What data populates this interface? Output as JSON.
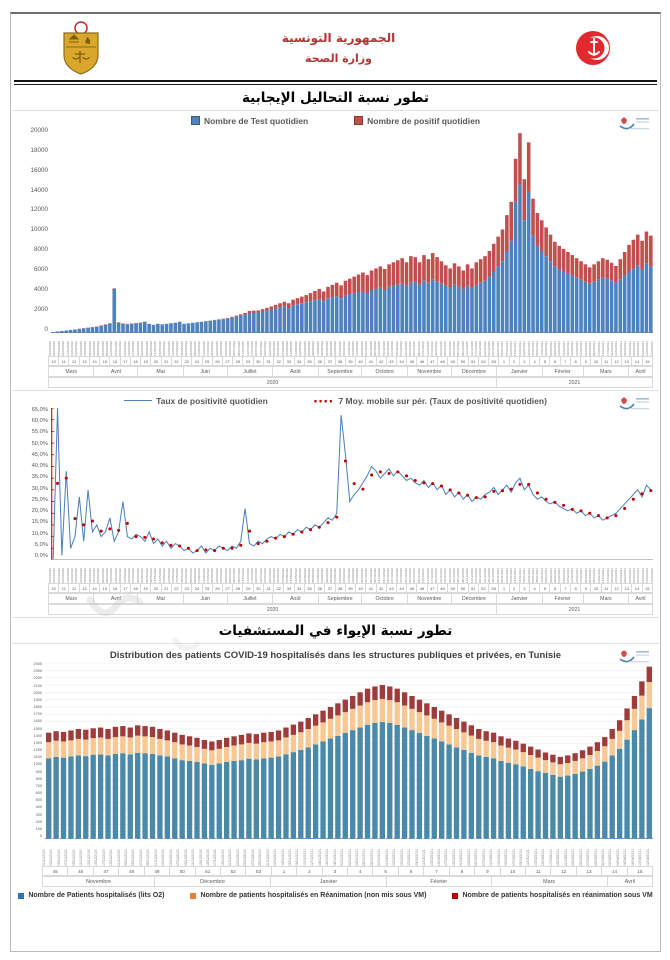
{
  "header": {
    "republic": "الجمهورية التونسية",
    "ministry": "وزارة الصحة"
  },
  "section1_title": "تطور نسبة التحاليل الإيجابية",
  "section2_title": "تطور نسبة الإيواء في المستشفيات",
  "colors": {
    "test_blue": "#4f81bd",
    "positive_red": "#c0504d",
    "ma_red": "#c00000",
    "hosp_blue": "#4a89a8",
    "hosp_tan": "#f7c893",
    "hosp_darkred": "#9e3b3b",
    "legend3_blue": "#2e75b6",
    "legend3_orange": "#ed7d31",
    "legend3_red": "#c00000"
  },
  "chart_data": [
    {
      "type": "bar",
      "stacked": true,
      "title": "",
      "legend": [
        "Nombre de Test quotidien",
        "Nombre de positif quotidien"
      ],
      "ylim": [
        0,
        20000
      ],
      "y_ticks": [
        "20000",
        "18000",
        "16000",
        "14000",
        "12000",
        "10000",
        "8000",
        "6000",
        "4000",
        "2000",
        "0"
      ],
      "x_start": "2020-03-01",
      "x_step_days": 3,
      "weeks": [
        "10",
        "11",
        "12",
        "13",
        "14",
        "15",
        "16",
        "17",
        "18",
        "19",
        "20",
        "21",
        "22",
        "23",
        "24",
        "25",
        "26",
        "27",
        "28",
        "29",
        "30",
        "31",
        "32",
        "33",
        "34",
        "35",
        "36",
        "37",
        "38",
        "39",
        "40",
        "41",
        "42",
        "43",
        "44",
        "45",
        "46",
        "47",
        "48",
        "49",
        "50",
        "51",
        "52",
        "53",
        "1",
        "2",
        "3",
        "4",
        "5",
        "6",
        "7",
        "8",
        "9",
        "10",
        "11",
        "12",
        "13",
        "14",
        "15"
      ],
      "months": [
        {
          "label": "Mars",
          "days": 31
        },
        {
          "label": "Avril",
          "days": 30
        },
        {
          "label": "Mai",
          "days": 31
        },
        {
          "label": "Juin",
          "days": 30
        },
        {
          "label": "Juillet",
          "days": 31
        },
        {
          "label": "Août",
          "days": 31
        },
        {
          "label": "Septembre",
          "days": 30
        },
        {
          "label": "Octobre",
          "days": 31
        },
        {
          "label": "Novembre",
          "days": 30
        },
        {
          "label": "Décembre",
          "days": 31
        },
        {
          "label": "Janvier",
          "days": 31
        },
        {
          "label": "Février",
          "days": 28
        },
        {
          "label": "Mars",
          "days": 31
        },
        {
          "label": "Avril",
          "days": 16
        }
      ],
      "years": [
        {
          "label": "2020",
          "days": 306
        },
        {
          "label": "2021",
          "days": 106
        }
      ],
      "series": [
        {
          "name": "Nombre de Test quotidien",
          "values": [
            100,
            150,
            200,
            250,
            300,
            350,
            400,
            450,
            500,
            550,
            600,
            700,
            800,
            900,
            4300,
            1000,
            900,
            850,
            900,
            950,
            1000,
            1100,
            900,
            800,
            900,
            850,
            900,
            950,
            1000,
            1100,
            900,
            950,
            1000,
            1050,
            1100,
            1150,
            1200,
            1250,
            1300,
            1350,
            1400,
            1500,
            1600,
            1700,
            1800,
            1900,
            2000,
            2000,
            2100,
            2200,
            2300,
            2400,
            2500,
            2600,
            2400,
            2700,
            2800,
            2900,
            3000,
            3100,
            3200,
            3300,
            3100,
            3400,
            3500,
            3600,
            3400,
            3700,
            3800,
            3900,
            4000,
            4100,
            3900,
            4200,
            4300,
            4400,
            4200,
            4500,
            4600,
            4700,
            4800,
            4600,
            4900,
            5000,
            4700,
            5100,
            4900,
            5200,
            5000,
            4800,
            4600,
            4400,
            4700,
            4500,
            4300,
            4600,
            4400,
            4700,
            4900,
            5100,
            5500,
            6000,
            6500,
            7000,
            8000,
            9000,
            12800,
            14500,
            11000,
            13800,
            9500,
            8500,
            8000,
            7500,
            7000,
            6500,
            6200,
            6000,
            5800,
            5600,
            5400,
            5200,
            5000,
            4800,
            5000,
            5200,
            5400,
            5300,
            5100,
            4900,
            5200,
            5600,
            6000,
            6300,
            6600,
            6200,
            6800,
            6500
          ]
        },
        {
          "name": "Nombre de positif quotidien",
          "values": [
            5,
            8,
            10,
            12,
            15,
            18,
            20,
            25,
            30,
            35,
            40,
            45,
            50,
            55,
            60,
            50,
            45,
            40,
            35,
            30,
            25,
            20,
            18,
            15,
            12,
            10,
            10,
            8,
            8,
            10,
            5,
            6,
            8,
            10,
            12,
            15,
            20,
            30,
            40,
            50,
            60,
            80,
            100,
            120,
            150,
            250,
            180,
            200,
            220,
            250,
            300,
            350,
            400,
            450,
            500,
            550,
            600,
            650,
            700,
            800,
            900,
            1000,
            950,
            1100,
            1200,
            1300,
            1250,
            1400,
            1500,
            1600,
            1700,
            1800,
            1750,
            1900,
            2000,
            2100,
            2050,
            2200,
            2300,
            2400,
            2500,
            2300,
            2600,
            2400,
            2200,
            2500,
            2300,
            2600,
            2400,
            2200,
            2000,
            1900,
            2100,
            2000,
            1800,
            2100,
            1900,
            2200,
            2300,
            2400,
            2500,
            2700,
            2900,
            3100,
            3500,
            3800,
            4200,
            5000,
            4000,
            4800,
            3600,
            3200,
            3000,
            2800,
            2600,
            2400,
            2300,
            2200,
            2100,
            2000,
            1900,
            1800,
            1700,
            1600,
            1700,
            1800,
            1900,
            1850,
            1750,
            1650,
            2000,
            2300,
            2600,
            2800,
            3000,
            2800,
            3100,
            3000
          ]
        }
      ]
    },
    {
      "type": "line",
      "title": "",
      "legend": [
        "Taux de positivité quotidien",
        "7 Moy. mobile sur pér. (Taux de positivité quotidien)"
      ],
      "ylim": [
        0,
        65
      ],
      "y_ticks": [
        "65,0%",
        "60,0%",
        "55,0%",
        "50,0%",
        "45,0%",
        "40,0%",
        "35,0%",
        "30,0%",
        "25,0%",
        "20,0%",
        "15,0%",
        "10,0%",
        "5,0%",
        "0,0%"
      ],
      "x_start": "2020-03-01",
      "x_step_days": 3,
      "weeks": [
        "10",
        "11",
        "12",
        "13",
        "14",
        "15",
        "16",
        "17",
        "18",
        "19",
        "20",
        "21",
        "22",
        "23",
        "24",
        "25",
        "26",
        "27",
        "28",
        "29",
        "30",
        "31",
        "32",
        "33",
        "34",
        "35",
        "36",
        "37",
        "38",
        "39",
        "40",
        "41",
        "42",
        "43",
        "44",
        "45",
        "46",
        "47",
        "48",
        "49",
        "50",
        "51",
        "52",
        "53",
        "1",
        "2",
        "3",
        "4",
        "5",
        "6",
        "7",
        "8",
        "9",
        "10",
        "11",
        "12",
        "13",
        "14",
        "15"
      ],
      "months": [
        {
          "label": "Mars",
          "days": 31
        },
        {
          "label": "Avril",
          "days": 30
        },
        {
          "label": "Mai",
          "days": 31
        },
        {
          "label": "Juin",
          "days": 30
        },
        {
          "label": "Juillet",
          "days": 31
        },
        {
          "label": "Août",
          "days": 31
        },
        {
          "label": "Septembre",
          "days": 30
        },
        {
          "label": "Octobre",
          "days": 31
        },
        {
          "label": "Novembre",
          "days": 30
        },
        {
          "label": "Décembre",
          "days": 31
        },
        {
          "label": "Janvier",
          "days": 31
        },
        {
          "label": "Février",
          "days": 28
        },
        {
          "label": "Mars",
          "days": 31
        },
        {
          "label": "Avril",
          "days": 16
        }
      ],
      "years": [
        {
          "label": "2020",
          "days": 306
        },
        {
          "label": "2021",
          "days": 106
        }
      ],
      "series": [
        {
          "name": "Taux de positivité quotidien",
          "values": [
            0.5,
            65,
            2,
            38,
            5,
            10,
            27,
            8,
            30,
            12,
            15,
            10,
            12,
            18,
            8,
            12,
            25,
            10,
            9,
            11,
            10,
            8,
            12,
            7,
            9,
            6,
            8,
            5,
            7,
            6,
            4,
            5,
            3,
            4,
            6,
            3,
            5,
            4,
            6,
            5,
            4,
            6,
            5,
            8,
            22,
            7,
            6,
            8,
            7,
            9,
            10,
            9,
            11,
            10,
            12,
            11,
            13,
            12,
            14,
            13,
            15,
            14,
            16,
            18,
            17,
            20,
            62,
            45,
            25,
            28,
            30,
            33,
            36,
            40,
            38,
            35,
            37,
            39,
            36,
            38,
            36,
            34,
            35,
            33,
            32,
            34,
            31,
            33,
            30,
            32,
            28,
            30,
            27,
            29,
            26,
            28,
            25,
            27,
            26,
            28,
            29,
            31,
            28,
            30,
            32,
            29,
            33,
            35,
            30,
            32,
            28,
            26,
            27,
            25,
            24,
            25,
            23,
            22,
            21,
            22,
            20,
            21,
            19,
            20,
            18,
            19,
            17,
            18,
            19,
            20,
            22,
            24,
            26,
            28,
            30,
            27,
            32,
            30
          ]
        },
        {
          "name": "7 Moy. mobile sur pér. (Taux de positivité quotidien)",
          "derived": "moving_average_of_series_0"
        }
      ]
    },
    {
      "type": "bar",
      "stacked": true,
      "title": "Distribution des patients COVID-19 hospitalisés dans les structures publiques et privées, en Tunisie",
      "legend": [
        "Nombre de Patients hospitalisés (lits O2)",
        "Nombre de patients hospitalisés en Réanimation (non mis sous VM)",
        "Nombre de patients  hospitalisés en réanimation  sous VM"
      ],
      "ylim": [
        0,
        2400
      ],
      "y_ticks": [
        "2400",
        "2300",
        "2200",
        "2100",
        "2000",
        "1900",
        "1800",
        "1700",
        "1600",
        "1500",
        "1400",
        "1300",
        "1200",
        "1100",
        "1000",
        "900",
        "800",
        "700",
        "600",
        "500",
        "400",
        "300",
        "200",
        "100",
        "0"
      ],
      "x_start": "2020-11-01",
      "x_step_days": 2,
      "weeks": [
        "45",
        "46",
        "47",
        "48",
        "49",
        "50",
        "51",
        "52",
        "53",
        "1",
        "2",
        "3",
        "4",
        "5",
        "6",
        "7",
        "8",
        "9",
        "10",
        "11",
        "12",
        "13",
        "14",
        "15"
      ],
      "months": [
        {
          "label": "Novembre",
          "days": 30
        },
        {
          "label": "Décembre",
          "days": 31
        },
        {
          "label": "Janvier",
          "days": 31
        },
        {
          "label": "Février",
          "days": 28
        },
        {
          "label": "Mars",
          "days": 31
        },
        {
          "label": "Avril",
          "days": 12
        }
      ],
      "years": [],
      "series": [
        {
          "name": "Nombre de Patients hospitalisés (lits O2)",
          "values": [
            1100,
            1120,
            1110,
            1125,
            1140,
            1130,
            1150,
            1155,
            1140,
            1160,
            1170,
            1155,
            1175,
            1170,
            1160,
            1140,
            1125,
            1100,
            1075,
            1065,
            1050,
            1030,
            1010,
            1030,
            1050,
            1065,
            1075,
            1095,
            1085,
            1100,
            1110,
            1125,
            1155,
            1185,
            1215,
            1250,
            1290,
            1330,
            1370,
            1405,
            1445,
            1485,
            1520,
            1555,
            1585,
            1595,
            1585,
            1555,
            1520,
            1485,
            1445,
            1405,
            1370,
            1330,
            1290,
            1250,
            1215,
            1175,
            1140,
            1120,
            1100,
            1065,
            1040,
            1020,
            990,
            955,
            925,
            900,
            875,
            850,
            865,
            890,
            920,
            955,
            1000,
            1055,
            1140,
            1230,
            1355,
            1485,
            1630,
            1785
          ]
        },
        {
          "name": "Nombre de patients hospitalisés en Réanimation (non mis sous VM)",
          "values": [
            220,
            220,
            220,
            220,
            225,
            225,
            225,
            230,
            225,
            230,
            230,
            230,
            235,
            230,
            230,
            225,
            220,
            220,
            215,
            210,
            205,
            200,
            200,
            200,
            205,
            210,
            215,
            215,
            215,
            220,
            220,
            220,
            230,
            235,
            240,
            250,
            255,
            260,
            270,
            280,
            285,
            290,
            300,
            310,
            310,
            315,
            310,
            310,
            300,
            290,
            285,
            280,
            270,
            260,
            255,
            250,
            240,
            235,
            225,
            220,
            220,
            210,
            205,
            200,
            195,
            190,
            185,
            175,
            170,
            170,
            170,
            175,
            180,
            190,
            200,
            210,
            225,
            245,
            265,
            290,
            325,
            355
          ]
        },
        {
          "name": "Nombre de patients hospitalisés en réanimation sous VM",
          "values": [
            130,
            130,
            130,
            135,
            135,
            135,
            135,
            135,
            135,
            140,
            140,
            135,
            140,
            140,
            140,
            135,
            135,
            130,
            130,
            125,
            125,
            120,
            120,
            120,
            125,
            125,
            130,
            130,
            130,
            130,
            130,
            135,
            135,
            140,
            145,
            150,
            155,
            160,
            160,
            165,
            170,
            175,
            180,
            185,
            185,
            190,
            185,
            185,
            180,
            175,
            170,
            165,
            160,
            160,
            155,
            150,
            145,
            140,
            135,
            130,
            130,
            125,
            125,
            120,
            115,
            115,
            110,
            105,
            105,
            100,
            105,
            105,
            110,
            115,
            120,
            125,
            135,
            145,
            160,
            175,
            195,
            210
          ]
        }
      ]
    }
  ]
}
